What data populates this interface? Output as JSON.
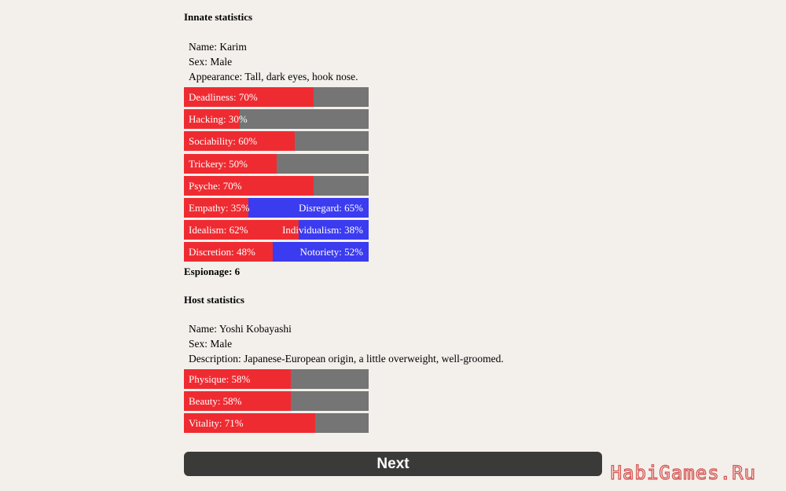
{
  "innate": {
    "title": "Innate statistics",
    "info": [
      {
        "text": "Name: Karim"
      },
      {
        "text": "Sex: Male"
      },
      {
        "text": "Appearance: Tall, dark eyes, hook nose."
      }
    ],
    "bars": [
      {
        "left_label": "Deadliness: 70%",
        "value": 0.7,
        "right_label": ""
      },
      {
        "left_label": "Hacking: 30%",
        "value": 0.3,
        "right_label": ""
      },
      {
        "left_label": "Sociability: 60%",
        "value": 0.6,
        "right_label": ""
      },
      {
        "left_label": "Trickery: 50%",
        "value": 0.5,
        "right_label": ""
      },
      {
        "left_label": "Psyche: 70%",
        "value": 0.7,
        "right_label": ""
      },
      {
        "left_label": "Empathy: 35%",
        "value": 0.35,
        "right_label": "Disregard: 65%"
      },
      {
        "left_label": "Idealism: 62%",
        "value": 0.62,
        "right_label": "Individualism: 38%"
      },
      {
        "left_label": "Discretion: 48%",
        "value": 0.48,
        "right_label": "Notoriety: 52%"
      }
    ],
    "espionage": "Espionage: 6"
  },
  "host": {
    "title": "Host statistics",
    "info": [
      {
        "text": "Name: Yoshi Kobayashi"
      },
      {
        "text": "Sex: Male"
      },
      {
        "text": "Description: Japanese-European origin, a little overweight, well-groomed."
      }
    ],
    "bars": [
      {
        "left_label": "Physique: 58%",
        "value": 0.58,
        "right_label": ""
      },
      {
        "left_label": "Beauty: 58%",
        "value": 0.58,
        "right_label": ""
      },
      {
        "left_label": "Vitality: 71%",
        "value": 0.71,
        "right_label": ""
      }
    ]
  },
  "next_button": {
    "label": "Next"
  },
  "watermark": {
    "text": "HabiGames.Ru"
  },
  "colors": {
    "background": "#f3f0eb",
    "trait_fill": "#ef2b32",
    "trait_remainder": "#757575",
    "opposed_trait": "#3b3bf0",
    "button": "#3a3a39",
    "watermark": "#d13a3a"
  }
}
